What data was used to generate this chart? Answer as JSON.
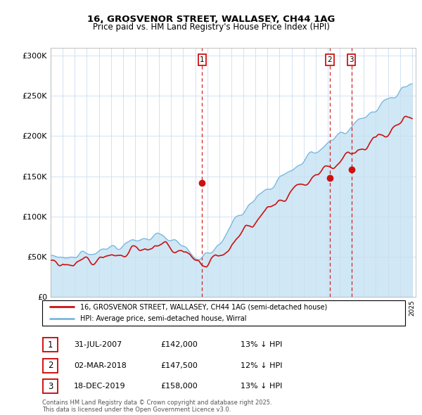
{
  "title_line1": "16, GROSVENOR STREET, WALLASEY, CH44 1AG",
  "title_line2": "Price paid vs. HM Land Registry's House Price Index (HPI)",
  "ylim": [
    0,
    310000
  ],
  "yticks": [
    0,
    50000,
    100000,
    150000,
    200000,
    250000,
    300000
  ],
  "ytick_labels": [
    "£0",
    "£50K",
    "£100K",
    "£150K",
    "£200K",
    "£250K",
    "£300K"
  ],
  "hpi_color": "#7ab8df",
  "hpi_fill_color": "#d0e8f5",
  "price_color": "#cc1111",
  "vline_color": "#cc0000",
  "background_color": "#ffffff",
  "grid_color": "#ccddee",
  "legend_label_red": "16, GROSVENOR STREET, WALLASEY, CH44 1AG (semi-detached house)",
  "legend_label_blue": "HPI: Average price, semi-detached house, Wirral",
  "sale1_year": 2007.58,
  "sale1_price_val": 142000,
  "sale1_date": "31-JUL-2007",
  "sale1_hpi": "13% ↓ HPI",
  "sale2_year": 2018.17,
  "sale2_price_val": 147500,
  "sale2_date": "02-MAR-2018",
  "sale2_hpi": "12% ↓ HPI",
  "sale3_year": 2019.96,
  "sale3_price_val": 158000,
  "sale3_date": "18-DEC-2019",
  "sale3_hpi": "13% ↓ HPI",
  "footer": "Contains HM Land Registry data © Crown copyright and database right 2025.\nThis data is licensed under the Open Government Licence v3.0."
}
